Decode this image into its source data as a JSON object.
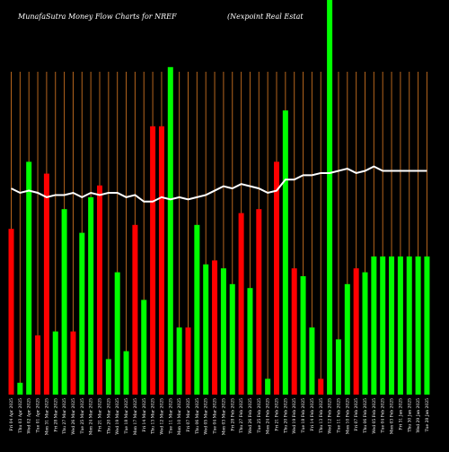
{
  "chart_data": {
    "type": "bar",
    "title": "MunafaSutra  Money Flow  Charts for NREF",
    "subtitle": "(Nexpoint Real Estat",
    "colors": {
      "up": "#00ff00",
      "down": "#ff0000",
      "line": "#ffffff",
      "grid": "#b5651d",
      "background": "#000000"
    },
    "bar_range": [
      0,
      100
    ],
    "line_range": [
      0,
      100
    ],
    "categories": [
      "Fri 04 Apr 2025",
      "Thu 03 Apr 2025",
      "Wed 02 Apr 2025",
      "Tue 01 Apr 2025",
      "Mon 31 Mar 2025",
      "Fri 28 Mar 2025",
      "Thu 27 Mar 2025",
      "Wed 26 Mar 2025",
      "Tue 25 Mar 2025",
      "Mon 24 Mar 2025",
      "Fri 21 Mar 2025",
      "Thu 20 Mar 2025",
      "Wed 19 Mar 2025",
      "Tue 18 Mar 2025",
      "Mon 17 Mar 2025",
      "Fri 14 Mar 2025",
      "Thu 13 Mar 2025",
      "Wed 12 Mar 2025",
      "Tue 11 Mar 2025",
      "Mon 10 Mar 2025",
      "Fri 07 Mar 2025",
      "Thu 06 Mar 2025",
      "Wed 05 Mar 2025",
      "Tue 04 Mar 2025",
      "Mon 03 Mar 2025",
      "Fri 28 Feb 2025",
      "Thu 27 Feb 2025",
      "Wed 26 Feb 2025",
      "Tue 25 Feb 2025",
      "Mon 24 Feb 2025",
      "Fri 21 Feb 2025",
      "Thu 20 Feb 2025",
      "Wed 19 Feb 2025",
      "Tue 18 Feb 2025",
      "Fri 14 Feb 2025",
      "Thu 13 Feb 2025",
      "Wed 12 Feb 2025",
      "Tue 11 Feb 2025",
      "Mon 10 Feb 2025",
      "Fri 07 Feb 2025",
      "Thu 06 Feb 2025",
      "Wed 05 Feb 2025",
      "Tue 04 Feb 2025",
      "Mon 03 Feb 2025",
      "Fri 31 Jan 2025",
      "Thu 30 Jan 2025",
      "Wed 29 Jan 2025",
      "Tue 28 Jan 2025"
    ],
    "series": [
      {
        "type": "bar",
        "values": [
          42,
          3,
          59,
          15,
          56,
          16,
          47,
          16,
          41,
          50,
          53,
          9,
          31,
          11,
          43,
          24,
          68,
          68,
          83,
          17,
          17,
          43,
          33,
          34,
          32,
          28,
          46,
          27,
          47,
          4,
          59,
          72,
          32,
          30,
          17,
          4,
          100,
          14,
          28,
          32,
          31,
          35,
          35,
          35,
          35,
          35,
          35,
          35
        ],
        "directions": [
          "down",
          "up",
          "up",
          "down",
          "down",
          "up",
          "up",
          "down",
          "up",
          "up",
          "down",
          "up",
          "up",
          "up",
          "down",
          "up",
          "down",
          "down",
          "up",
          "up",
          "down",
          "up",
          "up",
          "down",
          "up",
          "up",
          "down",
          "up",
          "down",
          "up",
          "down",
          "up",
          "down",
          "up",
          "up",
          "down",
          "up",
          "up",
          "up",
          "down",
          "up",
          "up",
          "up",
          "up",
          "up",
          "up",
          "up",
          "up"
        ]
      },
      {
        "type": "line",
        "values": [
          62,
          60,
          61,
          60,
          58,
          59,
          59,
          60,
          58,
          60,
          59,
          60,
          60,
          58,
          59,
          56,
          56,
          58,
          57,
          58,
          57,
          58,
          59,
          61,
          63,
          62,
          64,
          63,
          62,
          60,
          61,
          66,
          66,
          68,
          68,
          69,
          69,
          70,
          71,
          69,
          70,
          72,
          70,
          70,
          70,
          70,
          70,
          70
        ]
      }
    ]
  }
}
